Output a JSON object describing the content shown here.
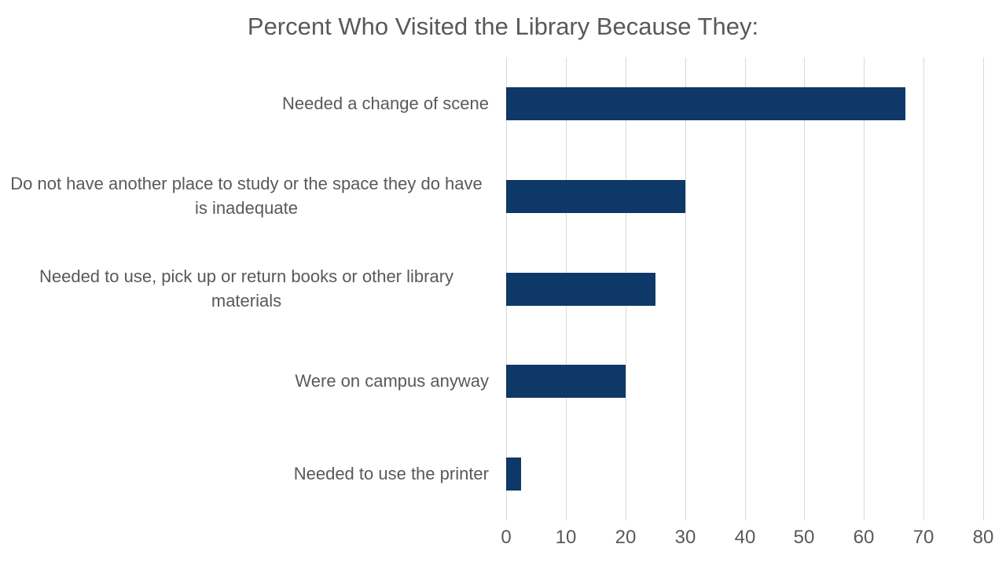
{
  "chart": {
    "title": "Percent Who Visited the Library Because They:"
  },
  "chart_data": {
    "type": "bar",
    "orientation": "horizontal",
    "title": "Percent Who Visited the Library Because They:",
    "categories": [
      "Needed a change of scene",
      "Do not have another place to study or the space they do have is inadequate",
      "Needed to use, pick up or return books or other library materials",
      "Were on campus anyway",
      "Needed to use the printer"
    ],
    "values": [
      67,
      30,
      25,
      20,
      2.5
    ],
    "xlabel": "",
    "ylabel": "",
    "xlim": [
      0,
      80
    ],
    "xticks": [
      0,
      10,
      20,
      30,
      40,
      50,
      60,
      70,
      80
    ],
    "grid": true,
    "legend": false,
    "colors": {
      "bar": "#0d3867",
      "text": "#595959",
      "gridline": "#d9d9d9",
      "background": "#ffffff"
    }
  }
}
